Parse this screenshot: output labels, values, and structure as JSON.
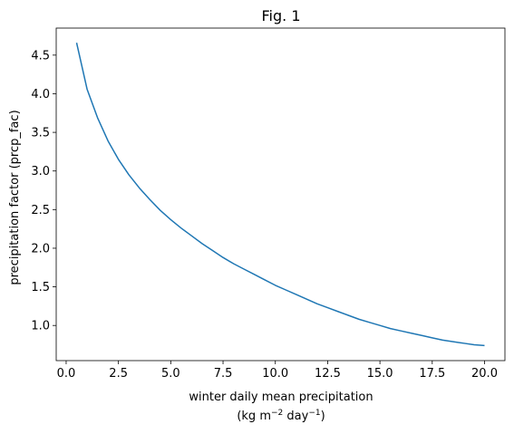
{
  "chart_data": {
    "type": "line",
    "title": "Fig. 1",
    "xlabel_line1": "winter daily mean precipitation",
    "xlabel_line2_pre": "(kg m",
    "xlabel_line2_sup1": "−2",
    "xlabel_line2_mid": " day",
    "xlabel_line2_sup2": "−1",
    "xlabel_line2_post": ")",
    "ylabel": "precipitation factor (prcp_fac)",
    "xlim": [
      -0.475,
      20.975
    ],
    "ylim": [
      0.545,
      4.85
    ],
    "xticks": [
      0.0,
      2.5,
      5.0,
      7.5,
      10.0,
      12.5,
      15.0,
      17.5,
      20.0
    ],
    "xtick_labels": [
      "0.0",
      "2.5",
      "5.0",
      "7.5",
      "10.0",
      "12.5",
      "15.0",
      "17.5",
      "20.0"
    ],
    "yticks": [
      1.0,
      1.5,
      2.0,
      2.5,
      3.0,
      3.5,
      4.0,
      4.5
    ],
    "ytick_labels": [
      "1.0",
      "1.5",
      "2.0",
      "2.5",
      "3.0",
      "3.5",
      "4.0",
      "4.5"
    ],
    "grid": false,
    "series": [
      {
        "color": "#1f77b4",
        "x": [
          0.5,
          1.0,
          1.5,
          2.0,
          2.5,
          3.0,
          3.5,
          4.0,
          4.5,
          5.0,
          5.5,
          6.0,
          6.5,
          7.0,
          7.5,
          8.0,
          8.5,
          9.0,
          9.5,
          10.0,
          10.5,
          11.0,
          11.5,
          12.0,
          12.5,
          13.0,
          13.5,
          14.0,
          14.5,
          15.0,
          15.5,
          16.0,
          16.5,
          17.0,
          17.5,
          18.0,
          18.5,
          19.0,
          19.5,
          20.0
        ],
        "y": [
          4.66,
          4.06,
          3.69,
          3.39,
          3.15,
          2.95,
          2.78,
          2.63,
          2.49,
          2.37,
          2.26,
          2.16,
          2.06,
          1.97,
          1.88,
          1.8,
          1.73,
          1.66,
          1.59,
          1.52,
          1.46,
          1.4,
          1.34,
          1.28,
          1.23,
          1.18,
          1.13,
          1.08,
          1.04,
          1.0,
          0.96,
          0.93,
          0.9,
          0.87,
          0.84,
          0.81,
          0.79,
          0.77,
          0.75,
          0.74
        ]
      }
    ]
  }
}
